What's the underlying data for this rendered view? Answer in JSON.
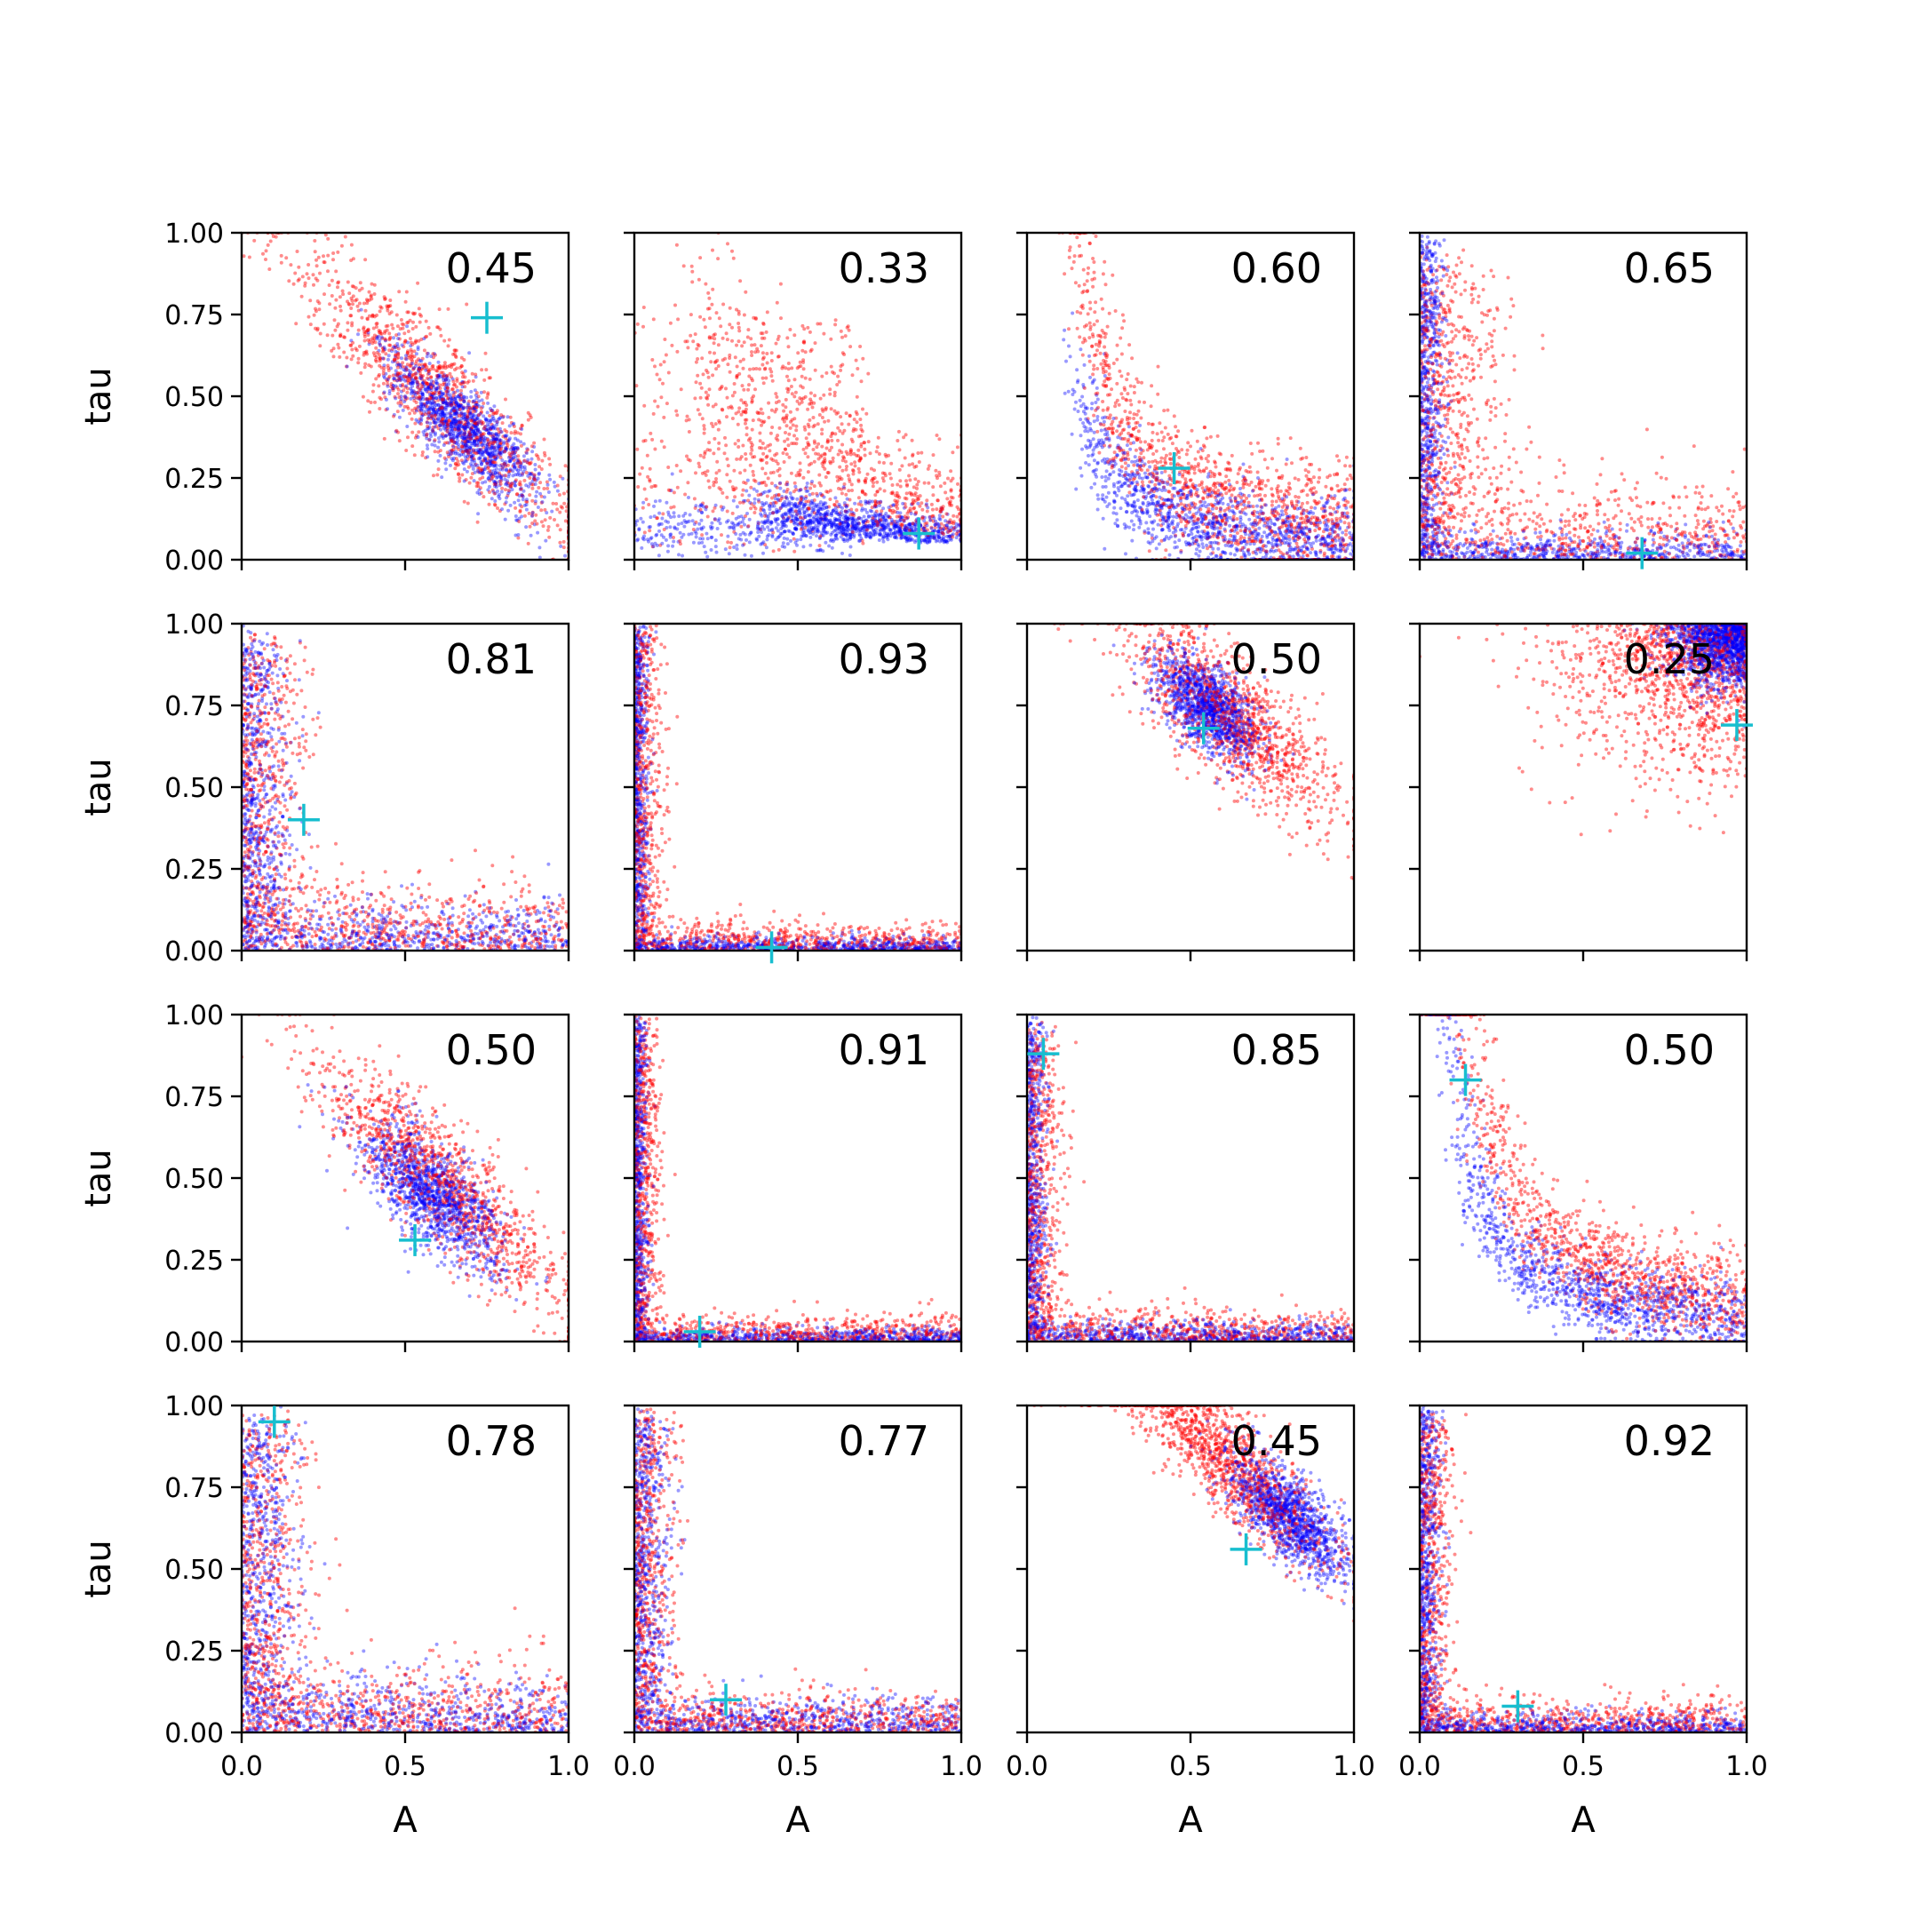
{
  "chart_data": {
    "type": "scatter",
    "layout": {
      "rows": 4,
      "cols": 4
    },
    "xlabel": "A",
    "ylabel": "tau",
    "xlim": [
      0.0,
      1.0
    ],
    "ylim": [
      0.0,
      1.0
    ],
    "xticks": [
      "0.0",
      "0.5",
      "1.0"
    ],
    "yticks": [
      "0.00",
      "0.25",
      "0.50",
      "0.75",
      "1.00"
    ],
    "grid": false,
    "colors": {
      "red_series": "#ff0000",
      "blue_series": "#0000ff",
      "marker": "#17becf"
    },
    "panels": [
      {
        "annotation": "0.45",
        "marker": [
          0.75,
          0.74
        ],
        "red": {
          "kind": "diag",
          "cx": 0.6,
          "cy": 0.5,
          "su": 0.3,
          "sv": 0.07
        },
        "blue": {
          "kind": "diag",
          "cx": 0.68,
          "cy": 0.4,
          "su": 0.16,
          "sv": 0.05
        }
      },
      {
        "annotation": "0.33",
        "marker": [
          0.87,
          0.08
        ],
        "red": {
          "kind": "bottom",
          "bx": 0.2,
          "by": 0.06,
          "ax": 0.7,
          "ay": 0.7,
          "scale": 0.3
        },
        "blue": {
          "kind": "bottom",
          "bx": 0.4,
          "by": 0.05,
          "ax": 0.5,
          "ay": 0.12,
          "scale": 0.1
        }
      },
      {
        "annotation": "0.60",
        "marker": [
          0.45,
          0.28
        ],
        "red": {
          "kind": "curve",
          "x0": 0.15,
          "y0": 0.1,
          "k": 0.09,
          "spread": 0.1
        },
        "blue": {
          "kind": "curve",
          "x0": 0.15,
          "y0": 0.1,
          "k": 0.05,
          "spread": 0.07
        }
      },
      {
        "annotation": "0.65",
        "marker": [
          0.68,
          0.02
        ],
        "red": {
          "kind": "corner",
          "scale": 0.22,
          "spread": 0.12
        },
        "blue": {
          "kind": "corner",
          "scale": 0.05,
          "spread": 0.04
        }
      },
      {
        "annotation": "0.81",
        "marker": [
          0.19,
          0.4
        ],
        "red": {
          "kind": "corner",
          "scale": 0.15,
          "spread": 0.1
        },
        "blue": {
          "kind": "corner",
          "scale": 0.1,
          "spread": 0.07
        }
      },
      {
        "annotation": "0.93",
        "marker": [
          0.42,
          0.01
        ],
        "red": {
          "kind": "corner",
          "scale": 0.05,
          "spread": 0.04
        },
        "blue": {
          "kind": "corner",
          "scale": 0.03,
          "spread": 0.02
        }
      },
      {
        "annotation": "0.50",
        "marker": [
          0.54,
          0.68
        ],
        "red": {
          "kind": "diag",
          "cx": 0.62,
          "cy": 0.72,
          "su": 0.22,
          "sv": 0.08
        },
        "blue": {
          "kind": "diag",
          "cx": 0.55,
          "cy": 0.75,
          "su": 0.1,
          "sv": 0.05
        }
      },
      {
        "annotation": "0.25",
        "marker": [
          0.97,
          0.69
        ],
        "red": {
          "kind": "topright",
          "spread": 0.22
        },
        "blue": {
          "kind": "topright",
          "spread": 0.09
        }
      },
      {
        "annotation": "0.50",
        "marker": [
          0.53,
          0.31
        ],
        "red": {
          "kind": "diag",
          "cx": 0.62,
          "cy": 0.48,
          "su": 0.28,
          "sv": 0.07
        },
        "blue": {
          "kind": "diag",
          "cx": 0.58,
          "cy": 0.45,
          "su": 0.14,
          "sv": 0.06
        }
      },
      {
        "annotation": "0.91",
        "marker": [
          0.2,
          0.03
        ],
        "red": {
          "kind": "corner",
          "scale": 0.05,
          "spread": 0.04
        },
        "blue": {
          "kind": "corner",
          "scale": 0.03,
          "spread": 0.02
        }
      },
      {
        "annotation": "0.85",
        "marker": [
          0.05,
          0.88
        ],
        "red": {
          "kind": "corner",
          "scale": 0.07,
          "spread": 0.05
        },
        "blue": {
          "kind": "corner",
          "scale": 0.04,
          "spread": 0.03
        }
      },
      {
        "annotation": "0.50",
        "marker": [
          0.14,
          0.8
        ],
        "red": {
          "kind": "curve",
          "x0": 0.05,
          "y0": 0.05,
          "k": 0.12,
          "spread": 0.08
        },
        "blue": {
          "kind": "curve",
          "x0": 0.05,
          "y0": 0.05,
          "k": 0.07,
          "spread": 0.06
        }
      },
      {
        "annotation": "0.78",
        "marker": [
          0.1,
          0.95
        ],
        "red": {
          "kind": "corner",
          "scale": 0.12,
          "spread": 0.1
        },
        "blue": {
          "kind": "corner",
          "scale": 0.08,
          "spread": 0.08
        }
      },
      {
        "annotation": "0.77",
        "marker": [
          0.28,
          0.1
        ],
        "red": {
          "kind": "corner",
          "scale": 0.08,
          "spread": 0.06
        },
        "blue": {
          "kind": "corner",
          "scale": 0.06,
          "spread": 0.05
        }
      },
      {
        "annotation": "0.45",
        "marker": [
          0.67,
          0.56
        ],
        "red": {
          "kind": "diag",
          "cx": 0.62,
          "cy": 0.82,
          "su": 0.22,
          "sv": 0.06
        },
        "blue": {
          "kind": "diag",
          "cx": 0.8,
          "cy": 0.66,
          "su": 0.12,
          "sv": 0.05
        }
      },
      {
        "annotation": "0.92",
        "marker": [
          0.3,
          0.08
        ],
        "red": {
          "kind": "corner",
          "scale": 0.06,
          "spread": 0.05
        },
        "blue": {
          "kind": "corner",
          "scale": 0.03,
          "spread": 0.03
        }
      }
    ]
  }
}
